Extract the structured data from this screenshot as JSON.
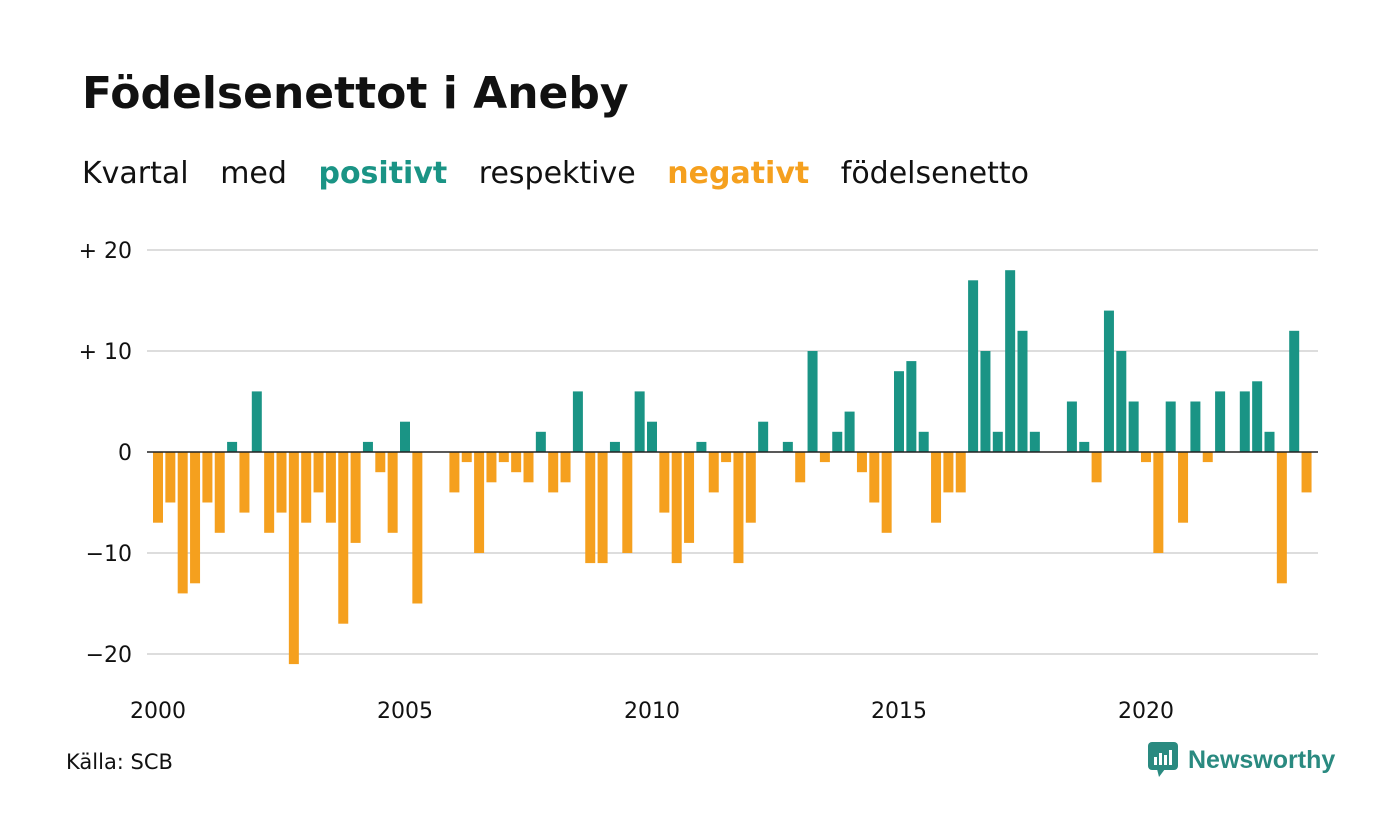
{
  "title": "Födelsenettot i Aneby",
  "subtitle": {
    "words": [
      "Kvartal",
      "med",
      "positivt",
      "respektive",
      "negativt",
      "födelsenetto"
    ]
  },
  "source": "Källa: SCB",
  "brand": "Newsworthy",
  "colors": {
    "positive": "#1a9485",
    "negative": "#f5a01e",
    "grid": "#dddddd"
  },
  "chart_data": {
    "type": "bar",
    "title": "Födelsenettot i Aneby",
    "xlabel": "",
    "ylabel": "",
    "ylim": [
      -23,
      20
    ],
    "yticks": [
      {
        "value": 20,
        "label": "+ 20"
      },
      {
        "value": 10,
        "label": "+ 10"
      },
      {
        "value": 0,
        "label": "0"
      },
      {
        "value": -10,
        "label": "−10"
      },
      {
        "value": -20,
        "label": "−20"
      }
    ],
    "xticks": [
      {
        "year": 2000,
        "label": "2000"
      },
      {
        "year": 2005,
        "label": "2005"
      },
      {
        "year": 2010,
        "label": "2010"
      },
      {
        "year": 2015,
        "label": "2015"
      },
      {
        "year": 2020,
        "label": "2020"
      }
    ],
    "start": "2000 Q1",
    "grid": true,
    "values": [
      -7,
      -5,
      -14,
      -13,
      -5,
      -8,
      1,
      -6,
      6,
      -8,
      -6,
      -21,
      -7,
      -4,
      -7,
      -17,
      -9,
      1,
      -2,
      -8,
      3,
      -15,
      0,
      0,
      -4,
      -1,
      -10,
      -3,
      -1,
      -2,
      -3,
      2,
      -4,
      -3,
      6,
      -11,
      -11,
      1,
      -10,
      6,
      3,
      -6,
      -11,
      -9,
      1,
      -4,
      -1,
      -11,
      -7,
      3,
      0,
      1,
      -3,
      10,
      -1,
      2,
      4,
      -2,
      -5,
      -8,
      8,
      9,
      2,
      -7,
      -4,
      -4,
      17,
      10,
      2,
      18,
      12,
      2,
      0,
      0,
      5,
      1,
      -3,
      14,
      10,
      5,
      -1,
      -10,
      5,
      -7,
      5,
      -1,
      6,
      0,
      6,
      7,
      2,
      -13,
      12,
      -4
    ]
  }
}
